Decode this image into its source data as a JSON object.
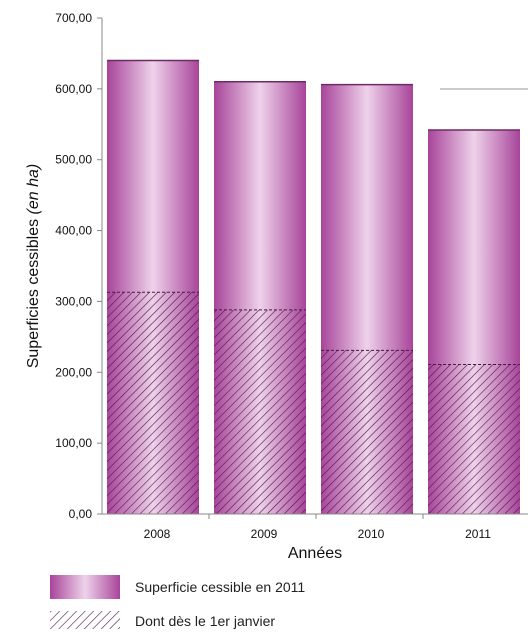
{
  "chart_data": {
    "type": "bar",
    "categories": [
      "2008",
      "2009",
      "2010",
      "2011"
    ],
    "series": [
      {
        "name": "Superficie cessible en 2011",
        "values": [
          640,
          610,
          606,
          542
        ]
      },
      {
        "name": "Dont dès le 1er janvier",
        "values": [
          313,
          288,
          231,
          211
        ]
      }
    ],
    "yticks": [
      "0,00",
      "100,00",
      "200,00",
      "300,00",
      "400,00",
      "500,00",
      "600,00",
      "700,00"
    ],
    "ylim": [
      0,
      700
    ],
    "xlabel": "Années",
    "ylabel_main": "Superficies cessibles ",
    "ylabel_unit": "(en ha)",
    "grid": false,
    "legend_position": "bottom-left",
    "colors": {
      "bar_dark": "#a8449a",
      "bar_light": "#eed2ea",
      "hatch": "#4a1a45",
      "axis": "#888888"
    }
  }
}
